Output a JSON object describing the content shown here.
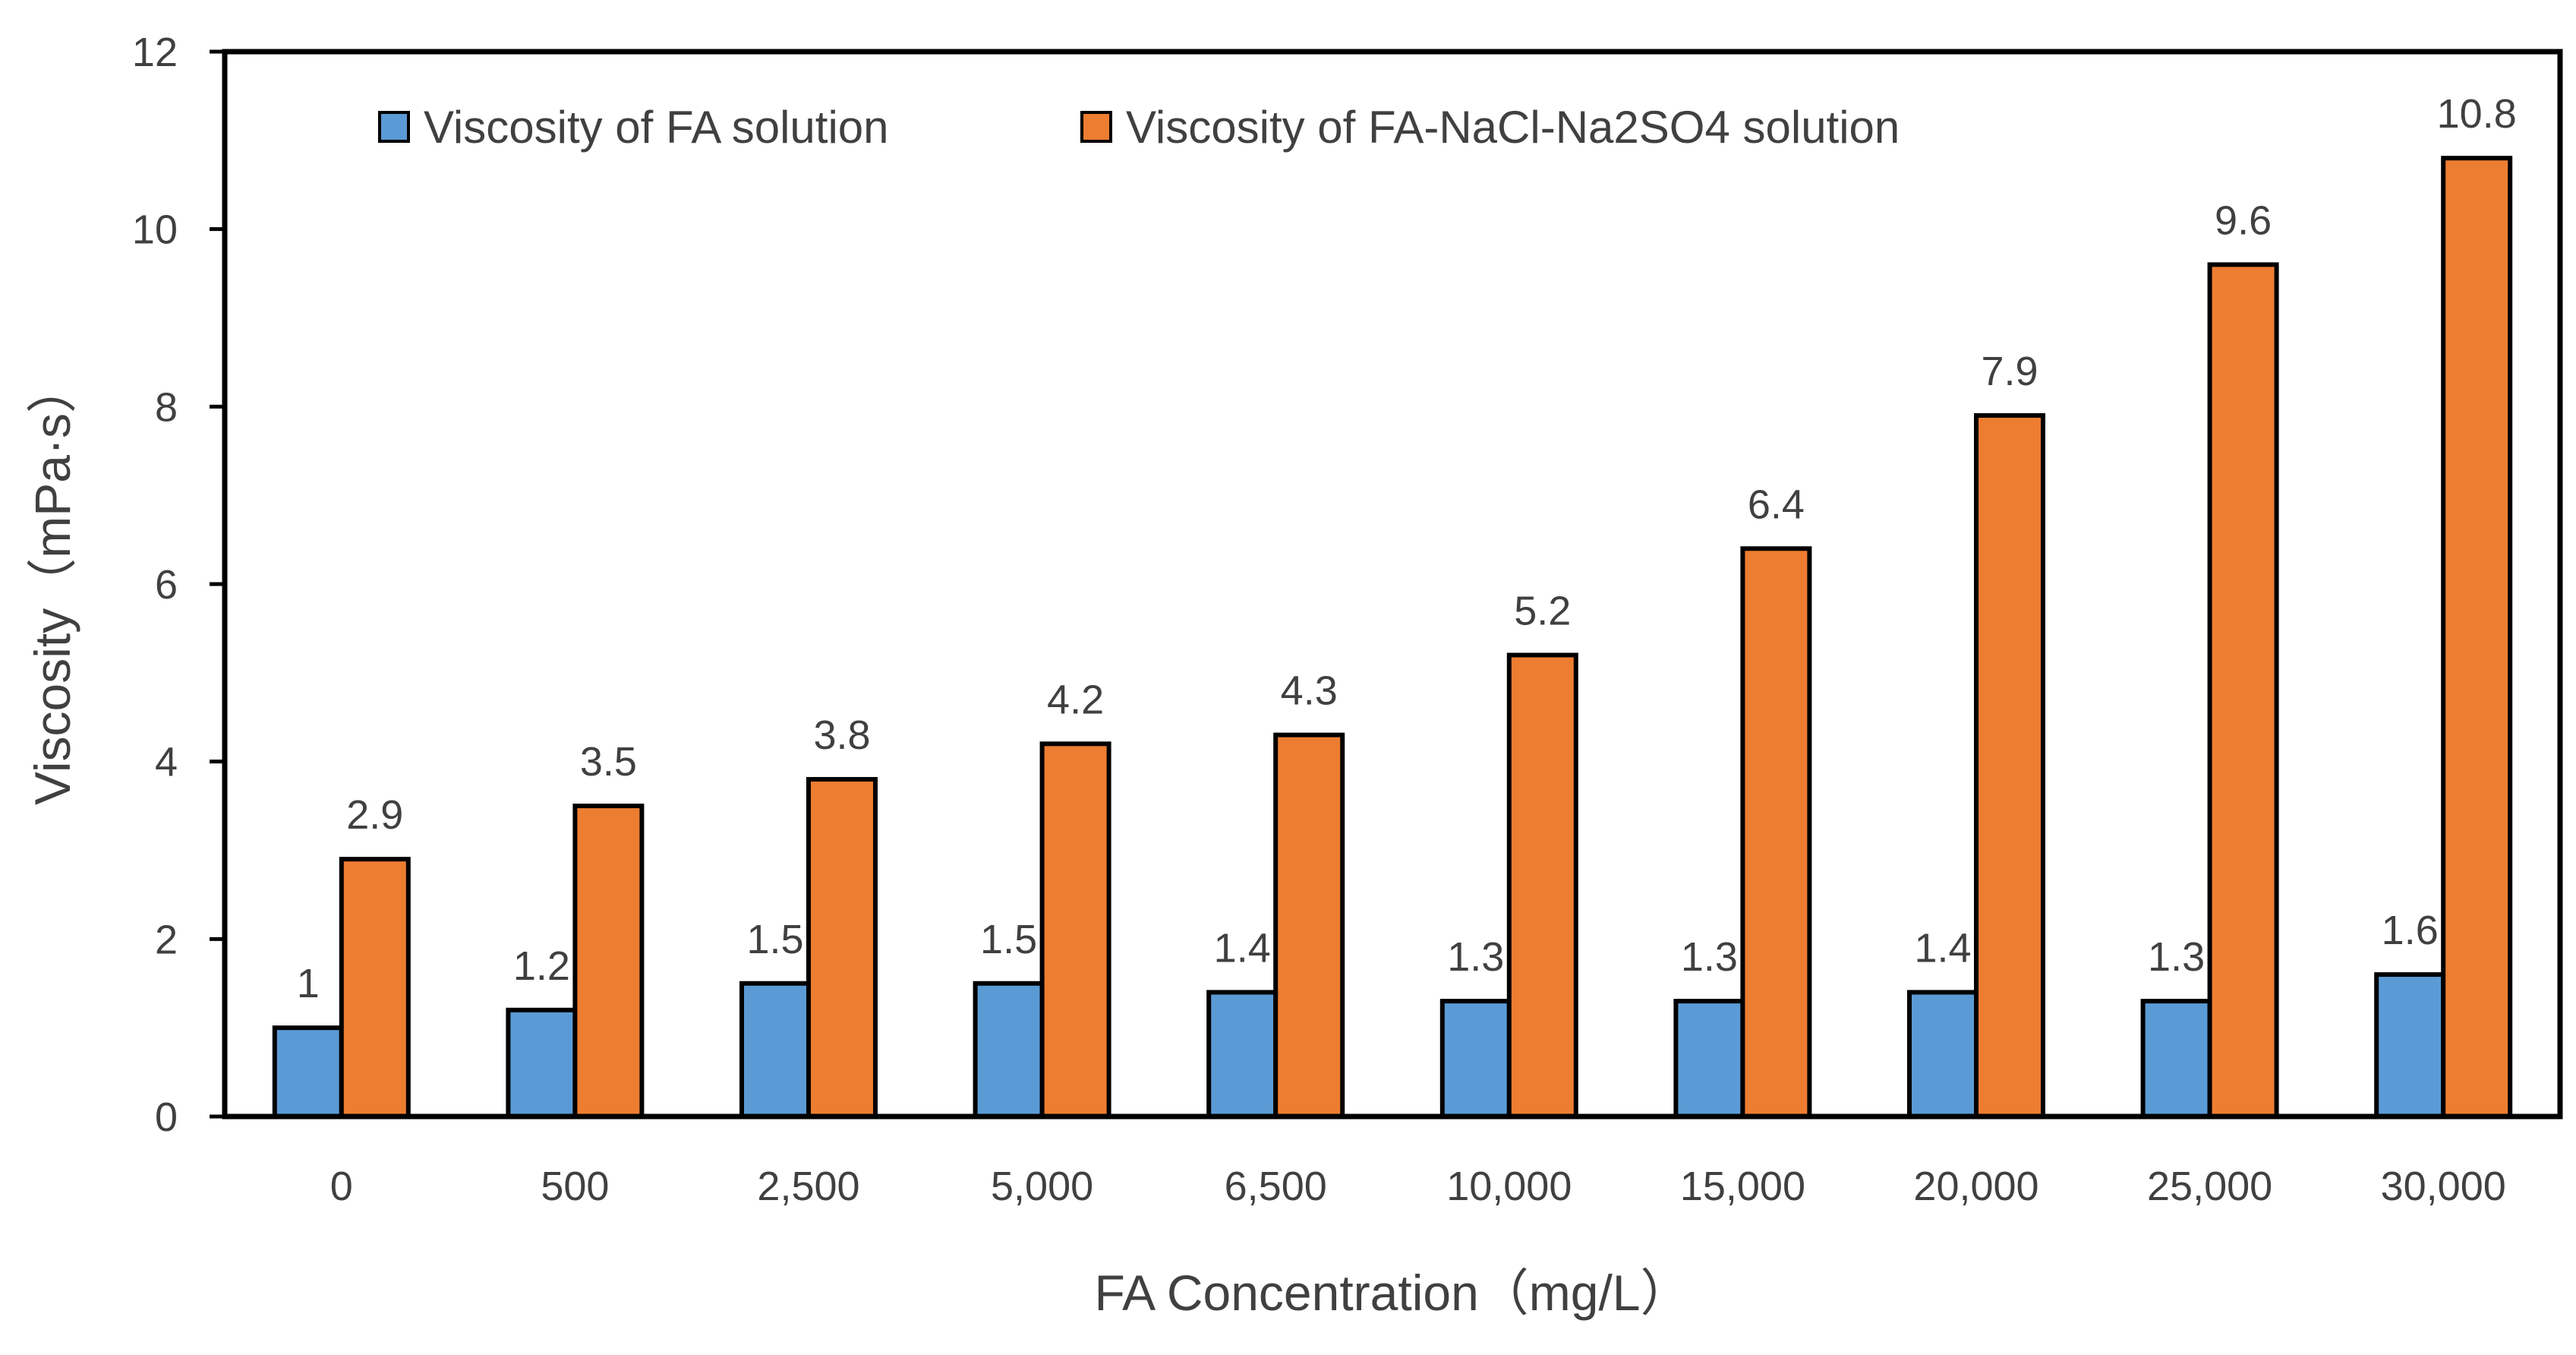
{
  "colors": {
    "series_fa": "#5B9BD5",
    "series_fa_nacl": "#ED7D31",
    "outline": "#000000",
    "text": "#404040",
    "background": "#ffffff"
  },
  "chart_data": {
    "type": "bar",
    "title": "",
    "xlabel": "FA Concentration（mg/L）",
    "ylabel": "Viscosity（mPa·s）",
    "ylim": [
      0,
      12
    ],
    "yticks": [
      0,
      2,
      4,
      6,
      8,
      10,
      12
    ],
    "yticklabels": [
      "0",
      "2",
      "4",
      "6",
      "8",
      "10",
      "12"
    ],
    "categories": [
      "0",
      "500",
      "2,500",
      "5,000",
      "6,500",
      "10,000",
      "15,000",
      "20,000",
      "25,000",
      "30,000"
    ],
    "legend_position": "top",
    "grid": false,
    "series": [
      {
        "name": "Viscosity of FA solution",
        "color_key": "series_fa",
        "values": [
          1,
          1.2,
          1.5,
          1.5,
          1.4,
          1.3,
          1.3,
          1.4,
          1.3,
          1.6
        ],
        "labels": [
          "1",
          "1.2",
          "1.5",
          "1.5",
          "1.4",
          "1.3",
          "1.3",
          "1.4",
          "1.3",
          "1.6"
        ]
      },
      {
        "name": "Viscosity of FA-NaCl-Na2SO4 solution",
        "color_key": "series_fa_nacl",
        "values": [
          2.9,
          3.5,
          3.8,
          4.2,
          4.3,
          5.2,
          6.4,
          7.9,
          9.6,
          10.8
        ],
        "labels": [
          "2.9",
          "3.5",
          "3.8",
          "4.2",
          "4.3",
          "5.2",
          "6.4",
          "7.9",
          "9.6",
          "10.8"
        ]
      }
    ]
  }
}
